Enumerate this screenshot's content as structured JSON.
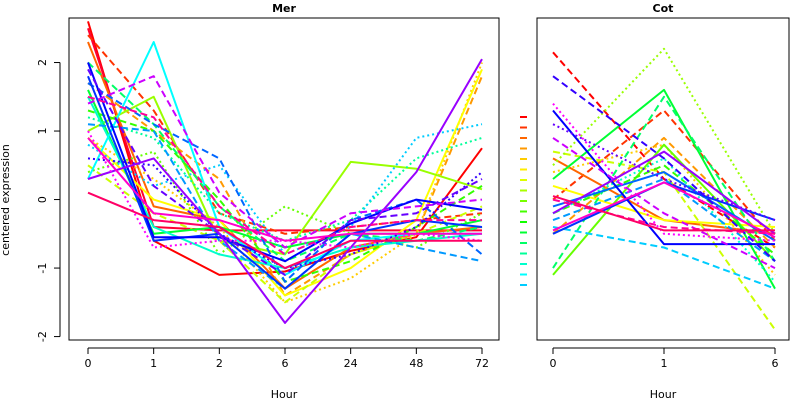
{
  "figure": {
    "ylabel": "centered expression"
  },
  "chart_data": [
    {
      "type": "line",
      "title": "Mer",
      "xlabel": "Hour",
      "ylabel": "centered expression",
      "categories": [
        "0",
        "1",
        "2",
        "6",
        "24",
        "48",
        "72"
      ],
      "yticks": [
        -2,
        -1,
        0,
        1,
        2
      ],
      "ylim": [
        -2.05,
        2.65
      ],
      "grid": false,
      "legend": "none",
      "series": [
        {
          "color": "#ff0000",
          "dash": "solid",
          "values": [
            2.6,
            -0.6,
            -1.1,
            -1.05,
            -0.75,
            -0.55,
            0.75
          ]
        },
        {
          "color": "#ff0033",
          "dash": "solid",
          "values": [
            2.5,
            -0.4,
            -0.45,
            -0.45,
            -0.45,
            -0.45,
            -0.45
          ]
        },
        {
          "color": "#ff3300",
          "dash": "dashed",
          "values": [
            2.4,
            1.3,
            -0.2,
            -0.5,
            -0.4,
            -0.3,
            -0.2
          ]
        },
        {
          "color": "#ff6600",
          "dash": "solid",
          "values": [
            2.3,
            -0.1,
            -0.3,
            -1.3,
            -0.7,
            -0.5,
            -0.4
          ]
        },
        {
          "color": "#ff9900",
          "dash": "dashed",
          "values": [
            1.7,
            1.0,
            0.3,
            -1.4,
            -0.8,
            -0.5,
            1.8
          ]
        },
        {
          "color": "#ffcc00",
          "dash": "dotted",
          "values": [
            0.9,
            0.3,
            -0.4,
            -1.5,
            -1.15,
            -0.5,
            2.0
          ]
        },
        {
          "color": "#ffff00",
          "dash": "solid",
          "values": [
            0.9,
            0.0,
            -0.3,
            -1.4,
            -1.0,
            -0.3,
            1.9
          ]
        },
        {
          "color": "#ccff00",
          "dash": "dashed",
          "values": [
            0.5,
            -0.2,
            -0.6,
            -1.5,
            -0.8,
            -0.5,
            -0.1
          ]
        },
        {
          "color": "#99ff00",
          "dash": "solid",
          "values": [
            1.0,
            1.5,
            -0.6,
            -0.8,
            0.55,
            0.45,
            0.15
          ]
        },
        {
          "color": "#66ff00",
          "dash": "dotted",
          "values": [
            0.4,
            0.7,
            -0.8,
            -0.1,
            -0.5,
            -0.7,
            -0.2
          ]
        },
        {
          "color": "#33ff00",
          "dash": "dashed",
          "values": [
            1.3,
            1.0,
            0.0,
            -1.2,
            -0.9,
            -0.4,
            0.2
          ]
        },
        {
          "color": "#00ff33",
          "dash": "solid",
          "values": [
            1.6,
            -0.5,
            -0.4,
            -0.7,
            -0.5,
            -0.5,
            -0.3
          ]
        },
        {
          "color": "#00ff66",
          "dash": "dashed",
          "values": [
            2.0,
            1.1,
            -0.1,
            -0.9,
            -0.5,
            -0.6,
            -0.4
          ]
        },
        {
          "color": "#00ff99",
          "dash": "dotted",
          "values": [
            1.2,
            0.9,
            -0.2,
            -0.6,
            -0.3,
            0.6,
            0.9
          ]
        },
        {
          "color": "#00ffcc",
          "dash": "solid",
          "values": [
            1.5,
            -0.4,
            -0.8,
            -1.0,
            -0.7,
            -0.6,
            -0.5
          ]
        },
        {
          "color": "#00ffff",
          "dash": "solid",
          "values": [
            0.3,
            2.3,
            -0.4,
            -1.1,
            -0.6,
            -0.5,
            -0.5
          ]
        },
        {
          "color": "#00ccff",
          "dash": "dotted",
          "values": [
            0.8,
            0.2,
            0.5,
            -0.8,
            -0.4,
            0.9,
            1.1
          ]
        },
        {
          "color": "#0099ff",
          "dash": "dashed",
          "values": [
            1.1,
            1.0,
            -0.6,
            -1.3,
            -0.5,
            -0.7,
            -0.9
          ]
        },
        {
          "color": "#0066ff",
          "dash": "dashed",
          "values": [
            1.7,
            1.1,
            0.6,
            -1.2,
            -0.3,
            0.0,
            -0.8
          ]
        },
        {
          "color": "#0033ff",
          "dash": "solid",
          "values": [
            1.8,
            -0.6,
            -0.5,
            -1.3,
            -0.5,
            -0.3,
            -0.4
          ]
        },
        {
          "color": "#0000ff",
          "dash": "solid",
          "values": [
            2.0,
            -0.55,
            -0.55,
            -0.9,
            -0.35,
            0.0,
            -0.15
          ]
        },
        {
          "color": "#3300ff",
          "dash": "dotted",
          "values": [
            0.6,
            0.5,
            -0.5,
            -1.0,
            -0.8,
            -0.4,
            0.4
          ]
        },
        {
          "color": "#6600ff",
          "dash": "dashed",
          "values": [
            1.9,
            0.2,
            -0.5,
            -1.1,
            -0.3,
            -0.2,
            0.3
          ]
        },
        {
          "color": "#9900ff",
          "dash": "solid",
          "values": [
            0.3,
            0.6,
            -0.5,
            -1.8,
            -0.7,
            0.4,
            2.05
          ]
        },
        {
          "color": "#cc00ff",
          "dash": "dashed",
          "values": [
            1.4,
            1.8,
            0.1,
            -0.7,
            -0.2,
            -0.1,
            0.0
          ]
        },
        {
          "color": "#ff00ff",
          "dash": "dotted",
          "values": [
            1.0,
            -0.7,
            -0.6,
            -0.6,
            -0.7,
            -0.5,
            -0.6
          ]
        },
        {
          "color": "#ff00cc",
          "dash": "solid",
          "values": [
            0.9,
            -0.2,
            -0.3,
            -0.6,
            -0.5,
            -0.5,
            -0.5
          ]
        },
        {
          "color": "#ff0099",
          "dash": "dashed",
          "values": [
            1.5,
            1.2,
            -0.1,
            -0.8,
            -0.4,
            -0.3,
            -0.3
          ]
        },
        {
          "color": "#ff0066",
          "dash": "solid",
          "values": [
            0.1,
            -0.3,
            -0.4,
            -1.0,
            -0.6,
            -0.6,
            -0.6
          ]
        }
      ]
    },
    {
      "type": "line",
      "title": "Cot",
      "xlabel": "Hour",
      "categories": [
        "0",
        "1",
        "6"
      ],
      "ylim": [
        -2.05,
        2.65
      ],
      "grid": false,
      "legend": "none",
      "series": [
        {
          "color": "#ff0000",
          "dash": "dashed",
          "values": [
            2.15,
            0.3,
            -0.7
          ]
        },
        {
          "color": "#ff3300",
          "dash": "dashed",
          "values": [
            0.0,
            1.3,
            -0.6
          ]
        },
        {
          "color": "#ff6600",
          "dash": "solid",
          "values": [
            0.6,
            -0.3,
            -0.5
          ]
        },
        {
          "color": "#ff9900",
          "dash": "dashed",
          "values": [
            -0.5,
            0.9,
            -0.7
          ]
        },
        {
          "color": "#ffcc00",
          "dash": "dotted",
          "values": [
            0.4,
            0.8,
            -1.1
          ]
        },
        {
          "color": "#ffff00",
          "dash": "solid",
          "values": [
            0.2,
            -0.3,
            -0.4
          ]
        },
        {
          "color": "#ccff00",
          "dash": "dashed",
          "values": [
            0.7,
            0.4,
            -1.9
          ]
        },
        {
          "color": "#99ff00",
          "dash": "dotted",
          "values": [
            0.5,
            2.2,
            -0.5
          ]
        },
        {
          "color": "#66ff00",
          "dash": "solid",
          "values": [
            -1.1,
            0.8,
            -0.9
          ]
        },
        {
          "color": "#33ff00",
          "dash": "dashed",
          "values": [
            -0.2,
            0.5,
            -0.8
          ]
        },
        {
          "color": "#00ff33",
          "dash": "solid",
          "values": [
            0.3,
            1.6,
            -1.3
          ]
        },
        {
          "color": "#00ff66",
          "dash": "dashed",
          "values": [
            -1.0,
            1.5,
            -0.9
          ]
        },
        {
          "color": "#00ffcc",
          "dash": "dotted",
          "values": [
            -0.2,
            0.6,
            -1.2
          ]
        },
        {
          "color": "#00ccff",
          "dash": "dashed",
          "values": [
            -0.4,
            -0.7,
            -1.3
          ]
        },
        {
          "color": "#0099ff",
          "dash": "dashed",
          "values": [
            -0.3,
            0.3,
            -0.9
          ]
        },
        {
          "color": "#0066ff",
          "dash": "solid",
          "values": [
            -0.1,
            0.4,
            -0.6
          ]
        },
        {
          "color": "#0033ff",
          "dash": "solid",
          "values": [
            -0.5,
            0.25,
            -0.3
          ]
        },
        {
          "color": "#0000ff",
          "dash": "solid",
          "values": [
            1.3,
            -0.65,
            -0.65
          ]
        },
        {
          "color": "#3300ff",
          "dash": "dashed",
          "values": [
            1.8,
            0.6,
            -0.9
          ]
        },
        {
          "color": "#6600ff",
          "dash": "dotted",
          "values": [
            1.1,
            0.3,
            -0.3
          ]
        },
        {
          "color": "#9900ff",
          "dash": "solid",
          "values": [
            -0.2,
            0.7,
            -0.5
          ]
        },
        {
          "color": "#cc00ff",
          "dash": "dashed",
          "values": [
            0.9,
            -0.2,
            -1.0
          ]
        },
        {
          "color": "#ff00ff",
          "dash": "dotted",
          "values": [
            1.4,
            -0.5,
            -0.6
          ]
        },
        {
          "color": "#ff00cc",
          "dash": "solid",
          "values": [
            -0.45,
            0.25,
            -0.55
          ]
        },
        {
          "color": "#ff0099",
          "dash": "dashed",
          "values": [
            0.0,
            -0.4,
            -0.5
          ]
        },
        {
          "color": "#ff0066",
          "dash": "solid",
          "values": [
            0.05,
            -0.45,
            -0.45
          ]
        }
      ]
    }
  ],
  "side_key_colors": [
    "#ff0000",
    "#ff3300",
    "#ff6600",
    "#ff9900",
    "#ffcc00",
    "#ffee00",
    "#ddff00",
    "#aaff00",
    "#77ff00",
    "#44ff00",
    "#11ff00",
    "#00ff33",
    "#00ff66",
    "#00ff99",
    "#00ffcc",
    "#00ffff",
    "#00ccff"
  ]
}
